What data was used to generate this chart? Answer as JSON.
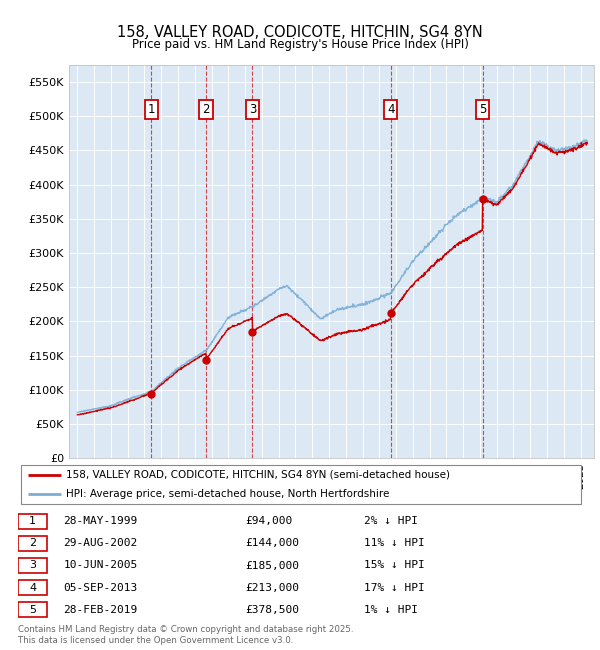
{
  "title": "158, VALLEY ROAD, CODICOTE, HITCHIN, SG4 8YN",
  "subtitle": "Price paid vs. HM Land Registry's House Price Index (HPI)",
  "ylabel_values": [
    0,
    50000,
    100000,
    150000,
    200000,
    250000,
    300000,
    350000,
    400000,
    450000,
    500000,
    550000
  ],
  "ylim": [
    0,
    575000
  ],
  "xlim_start": 1994.5,
  "xlim_end": 2025.8,
  "background_color": "#dce9f5",
  "grid_color": "#ffffff",
  "sale_dates": [
    1999.41,
    2002.66,
    2005.44,
    2013.68,
    2019.16
  ],
  "sale_prices": [
    94000,
    144000,
    185000,
    213000,
    378500
  ],
  "sale_labels": [
    "1",
    "2",
    "3",
    "4",
    "5"
  ],
  "vline_color": "#cc0000",
  "legend_label_red": "158, VALLEY ROAD, CODICOTE, HITCHIN, SG4 8YN (semi-detached house)",
  "legend_label_blue": "HPI: Average price, semi-detached house, North Hertfordshire",
  "table_entries": [
    {
      "num": "1",
      "date": "28-MAY-1999",
      "price": "£94,000",
      "hpi": "2% ↓ HPI"
    },
    {
      "num": "2",
      "date": "29-AUG-2002",
      "price": "£144,000",
      "hpi": "11% ↓ HPI"
    },
    {
      "num": "3",
      "date": "10-JUN-2005",
      "price": "£185,000",
      "hpi": "15% ↓ HPI"
    },
    {
      "num": "4",
      "date": "05-SEP-2013",
      "price": "£213,000",
      "hpi": "17% ↓ HPI"
    },
    {
      "num": "5",
      "date": "28-FEB-2019",
      "price": "£378,500",
      "hpi": "1% ↓ HPI"
    }
  ],
  "footnote": "Contains HM Land Registry data © Crown copyright and database right 2025.\nThis data is licensed under the Open Government Licence v3.0.",
  "red_line_color": "#cc0000",
  "blue_line_color": "#7aadd4",
  "marker_box_color": "#cc0000"
}
